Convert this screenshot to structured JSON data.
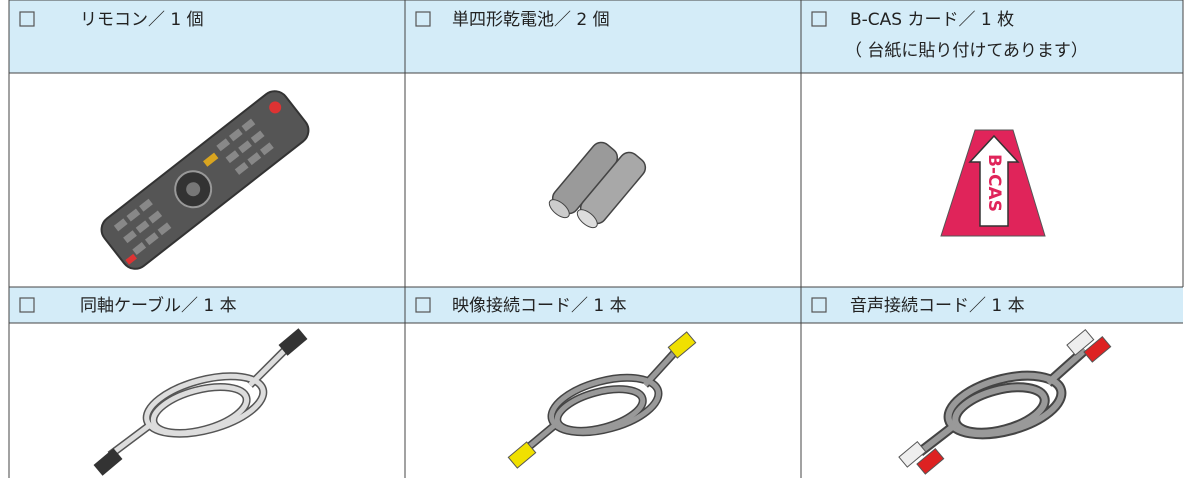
{
  "items": [
    {
      "label": "リモコン／ 1 個"
    },
    {
      "label": "単四形乾電池／ 2 個"
    },
    {
      "label": "B-CAS カード／ 1 枚",
      "note": "（ 台紙に貼り付けてあります）",
      "card_text": "B-CAS"
    },
    {
      "label": "同軸ケーブル／ 1 本"
    },
    {
      "label": "映像接続コード／ 1 本"
    },
    {
      "label": "音声接続コード／ 1 本"
    }
  ]
}
